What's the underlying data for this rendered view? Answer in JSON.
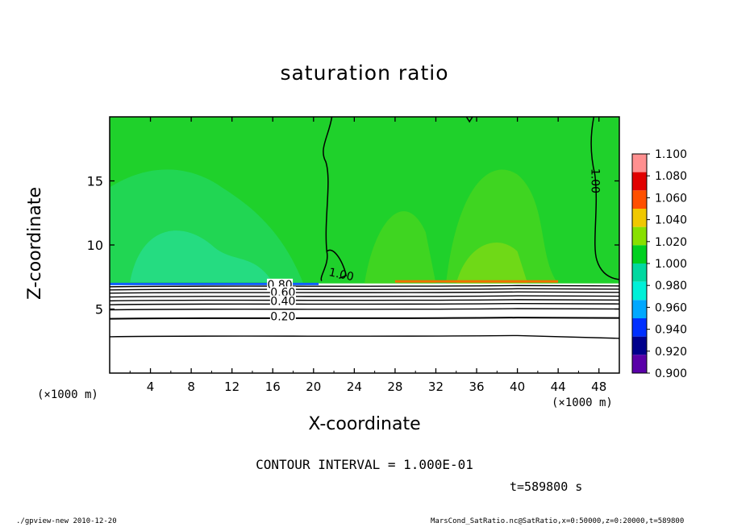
{
  "chart_data": {
    "type": "heatmap",
    "title": "saturation ratio",
    "xlabel": "X-coordinate",
    "ylabel": "Z-coordinate",
    "x_unit": "(×1000 m)",
    "x_range": [
      0,
      50
    ],
    "y_range": [
      0,
      20
    ],
    "x_ticks": [
      4,
      8,
      12,
      16,
      20,
      24,
      28,
      32,
      36,
      40,
      44,
      48
    ],
    "y_ticks": [
      5,
      10,
      15
    ],
    "colorbar": {
      "levels": [
        0.9,
        0.92,
        0.94,
        0.96,
        0.98,
        1.0,
        1.02,
        1.04,
        1.06,
        1.08,
        1.1
      ],
      "labels": [
        "0.900",
        "0.920",
        "0.940",
        "0.960",
        "0.980",
        "1.000",
        "1.020",
        "1.040",
        "1.060",
        "1.080",
        "1.100"
      ],
      "colors": [
        "#5a00a8",
        "#00008c",
        "#0030ff",
        "#00a8ff",
        "#00f0d8",
        "#00d8a0",
        "#00d020",
        "#88e000",
        "#f0c800",
        "#ff5000",
        "#e00000",
        "#ff9090"
      ]
    },
    "contour_labels": [
      {
        "text": "1.00",
        "x": 22.7,
        "y": 7.6
      },
      {
        "text": "1.00",
        "x": 47.5,
        "y": 15.0
      },
      {
        "text": "0.80",
        "x": 16.7,
        "y": 6.8
      },
      {
        "text": "0.60",
        "x": 17.0,
        "y": 6.2
      },
      {
        "text": "0.40",
        "x": 17.0,
        "y": 5.5
      },
      {
        "text": "0.20",
        "x": 17.0,
        "y": 4.3
      }
    ],
    "contour_interval": "CONTOUR INTERVAL = 1.000E-01",
    "time": "t=589800 s"
  },
  "footer": {
    "left": "./gpview-new   2010-12-20",
    "right": "MarsCond_SatRatio.nc@SatRatio,x=0:50000,z=0:20000,t=589800"
  }
}
